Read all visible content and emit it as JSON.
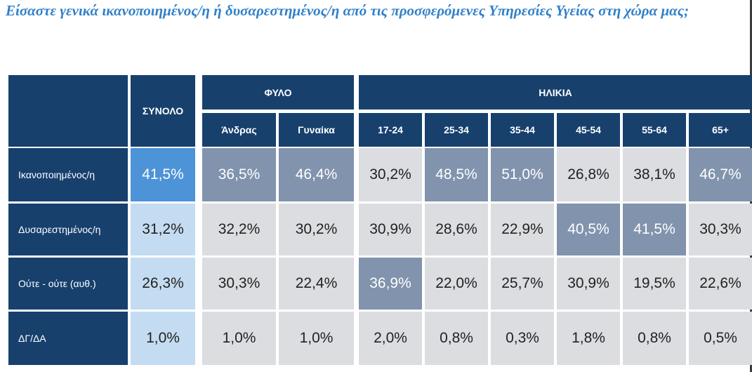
{
  "title": "Είσαστε γενικά ικανοποιημένος/η ή δυσαρεστημένος/η από τις προσφερόμενες Υπηρεσίες Υγείας στη χώρα μας;",
  "header": {
    "total": "ΣΥΝΟΛΟ",
    "gender_group": "ΦΥΛΟ",
    "age_group": "ΗΛΙΚΙΑ",
    "gender": [
      "Άνδρας",
      "Γυναίκα"
    ],
    "age": [
      "17-24",
      "25-34",
      "35-44",
      "45-54",
      "55-64",
      "65+"
    ]
  },
  "rows": [
    {
      "label": "Ικανοποιημένος/η",
      "total": "41,5%",
      "gender": [
        "36,5%",
        "46,4%"
      ],
      "age": [
        "30,2%",
        "48,5%",
        "51,0%",
        "26,8%",
        "38,1%",
        "46,7%"
      ]
    },
    {
      "label": "Δυσαρεστημένος/η",
      "total": "31,2%",
      "gender": [
        "32,2%",
        "30,2%"
      ],
      "age": [
        "30,9%",
        "28,6%",
        "22,9%",
        "40,5%",
        "41,5%",
        "30,3%"
      ]
    },
    {
      "label": "Ούτε - ούτε (αυθ.)",
      "total": "26,3%",
      "gender": [
        "30,3%",
        "22,4%"
      ],
      "age": [
        "36,9%",
        "22,0%",
        "25,7%",
        "30,9%",
        "19,5%",
        "22,6%"
      ]
    },
    {
      "label": "ΔΓ/ΔΑ",
      "total": "1,0%",
      "gender": [
        "1,0%",
        "1,0%"
      ],
      "age": [
        "2,0%",
        "0,8%",
        "0,3%",
        "1,8%",
        "0,8%",
        "0,5%"
      ]
    }
  ],
  "colors": {
    "header_bg": "#17406d",
    "highlight_strong": "#4d93d8",
    "highlight_total": "#c4dcf1",
    "highlight_mid": "#8193ad",
    "cell_bg": "#dcdde1",
    "title_text": "#2f80c9"
  }
}
